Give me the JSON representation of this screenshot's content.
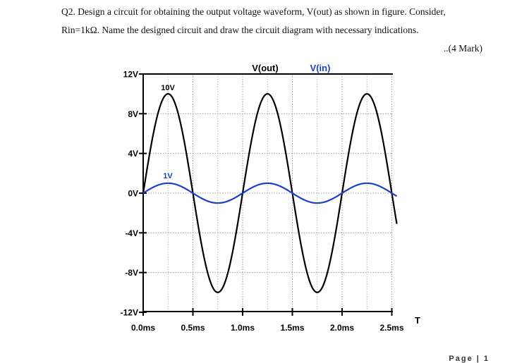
{
  "question": {
    "line1": "Q2. Design a circuit for obtaining the output voltage waveform, V(out) as shown in figure. Consider,",
    "line2": "Rin=1kΩ. Name the designed circuit and draw the circuit diagram with necessary indications.",
    "marks": "..(4 Mark)"
  },
  "footer": "Page | 1",
  "chart_data": {
    "type": "line",
    "title": "",
    "xlabel": "T",
    "ylabel": "",
    "xlim": [
      0,
      2.55
    ],
    "ylim": [
      -12,
      12
    ],
    "x_unit": "ms",
    "y_unit": "V",
    "xticks": [
      "0.0ms",
      "0.5ms",
      "1.0ms",
      "1.5ms",
      "2.0ms",
      "2.5ms"
    ],
    "xtick_values": [
      0,
      0.5,
      1.0,
      1.5,
      2.0,
      2.5
    ],
    "yticks": [
      "12V",
      "8V",
      "4V",
      "0V",
      "-4V",
      "-8V",
      "-12V"
    ],
    "ytick_values": [
      12,
      8,
      4,
      0,
      -4,
      -8,
      -12
    ],
    "grid": true,
    "legend_placement": "top",
    "series": [
      {
        "name": "V(out)",
        "color": "#000000",
        "amplitude": 10,
        "frequency_khz": 1,
        "phase": "sine",
        "peak_label": "10V"
      },
      {
        "name": "V(in)",
        "color": "#1a3fd0",
        "amplitude": 1,
        "frequency_khz": 1,
        "phase": "sine",
        "peak_label": "1V"
      }
    ],
    "annotations": [
      "10V",
      "1V"
    ]
  }
}
